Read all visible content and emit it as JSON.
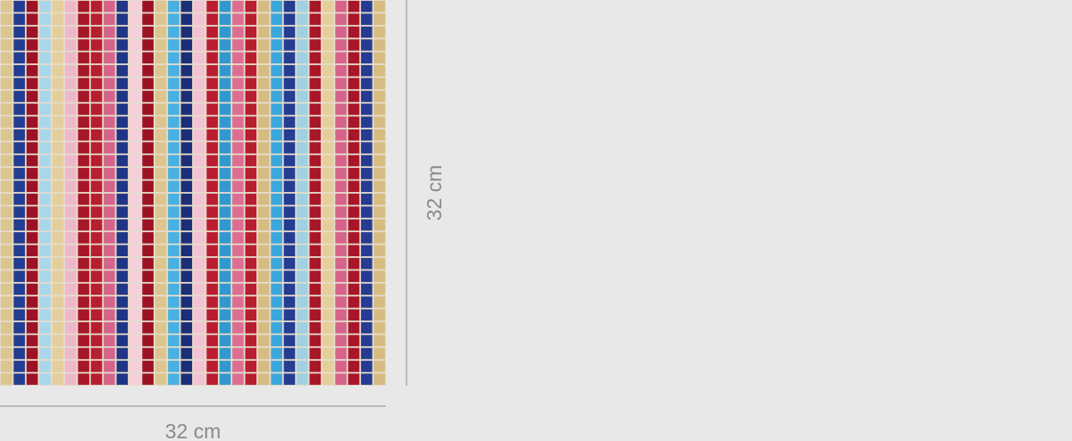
{
  "dimensions": {
    "width_label": "32 cm",
    "height_label": "32 cm"
  }
}
